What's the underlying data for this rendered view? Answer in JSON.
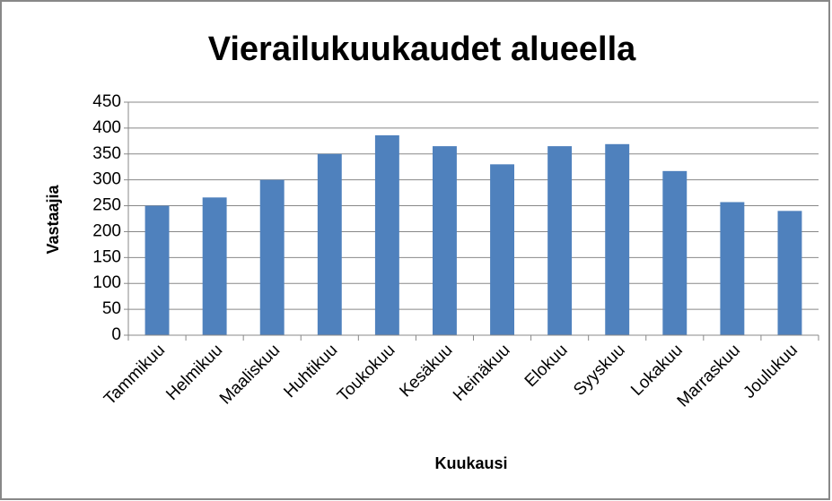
{
  "chart_data": {
    "type": "bar",
    "title": "Vierailukuukaudet alueella",
    "x_label": "Kuukausi",
    "y_label": "Vastaajia",
    "categories": [
      "Tammikuu",
      "Helmikuu",
      "Maaliskuu",
      "Huhtikuu",
      "Toukokuu",
      "Kesäkuu",
      "Heinäkuu",
      "Elokuu",
      "Syyskuu",
      "Lokakuu",
      "Marraskuu",
      "Joulukuu"
    ],
    "values": [
      250,
      266,
      300,
      350,
      386,
      365,
      330,
      365,
      369,
      317,
      257,
      240
    ],
    "color": "#4f81bd",
    "ylim": [
      0,
      450
    ],
    "yticks": [
      0,
      50,
      100,
      150,
      200,
      250,
      300,
      350,
      400,
      450
    ],
    "grid": true
  }
}
